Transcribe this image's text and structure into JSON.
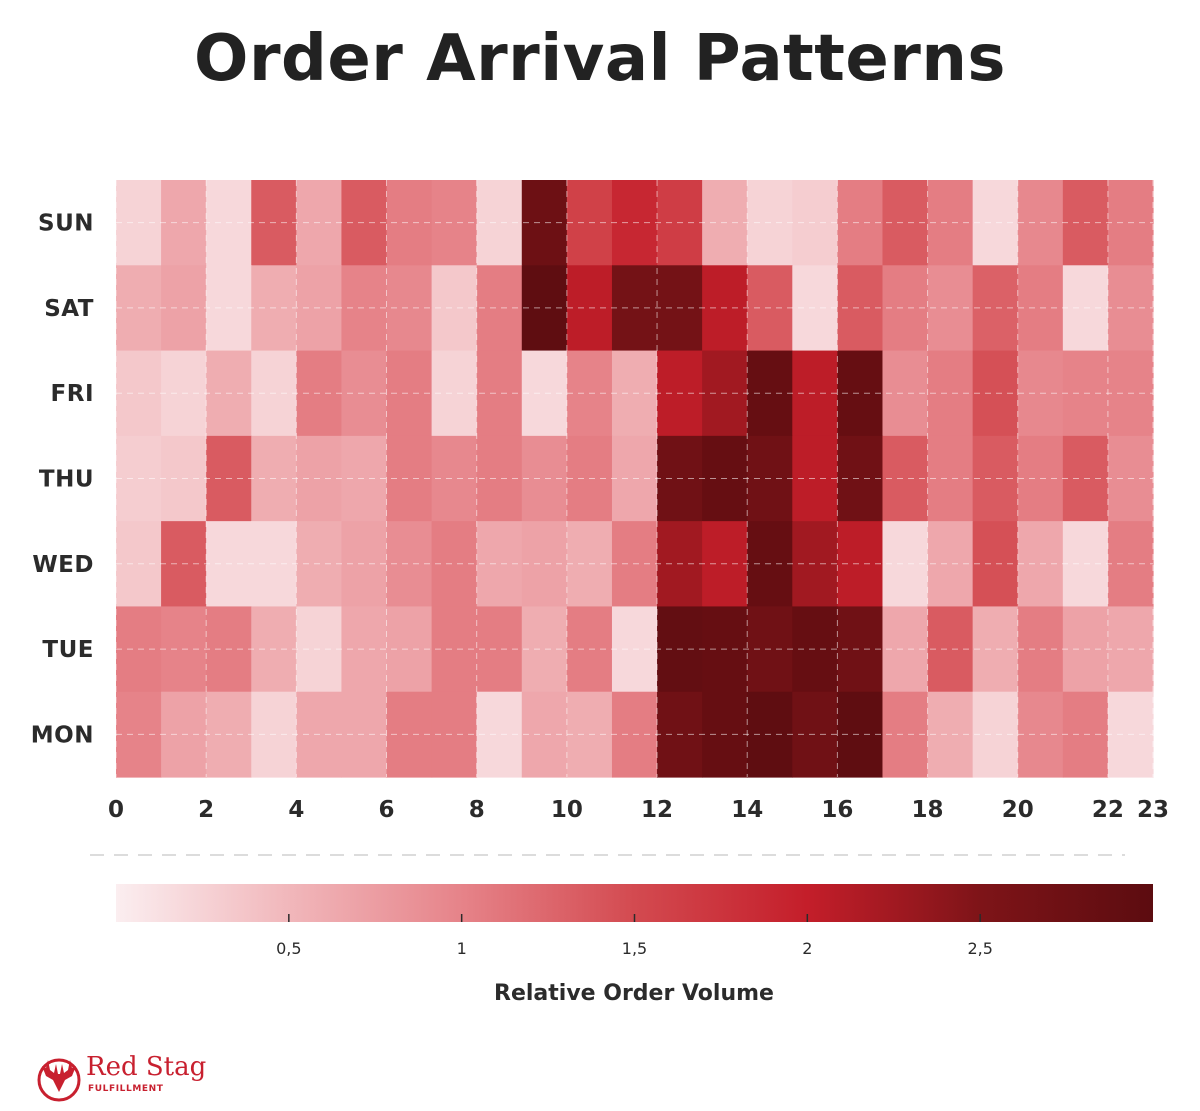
{
  "title": "Order Arrival Patterns",
  "chart_data": {
    "type": "heatmap",
    "title": "Order Arrival Patterns",
    "y_categories": [
      "SUN",
      "SAT",
      "FRI",
      "THU",
      "WED",
      "TUE",
      "MON"
    ],
    "x_tick_labels": [
      "0",
      "2",
      "4",
      "6",
      "8",
      "10",
      "12",
      "14",
      "16",
      "18",
      "20",
      "22",
      "23"
    ],
    "x_range": [
      0,
      23
    ],
    "values": [
      [
        0.25,
        0.65,
        0.2,
        1.35,
        0.65,
        1.35,
        1.05,
        1.0,
        0.25,
        2.75,
        1.6,
        1.9,
        1.65,
        0.6,
        0.25,
        0.3,
        1.05,
        1.35,
        1.05,
        0.2,
        0.95,
        1.35,
        1.05
      ],
      [
        0.6,
        0.7,
        0.2,
        0.6,
        0.7,
        1.0,
        0.95,
        0.35,
        1.05,
        2.95,
        2.05,
        2.65,
        2.65,
        2.05,
        1.35,
        0.2,
        1.35,
        1.05,
        0.9,
        1.3,
        1.05,
        0.2,
        0.9
      ],
      [
        0.35,
        0.25,
        0.6,
        0.25,
        1.05,
        0.9,
        1.05,
        0.25,
        1.05,
        0.2,
        1.0,
        0.6,
        2.05,
        2.25,
        2.85,
        2.05,
        2.85,
        0.9,
        1.05,
        1.45,
        0.95,
        1.0,
        1.0
      ],
      [
        0.3,
        0.35,
        1.35,
        0.6,
        0.7,
        0.65,
        1.05,
        0.95,
        1.05,
        0.9,
        1.05,
        0.65,
        2.7,
        2.85,
        2.7,
        2.05,
        2.7,
        1.35,
        1.05,
        1.35,
        1.05,
        1.35,
        0.9
      ],
      [
        0.35,
        1.35,
        0.2,
        0.2,
        0.6,
        0.7,
        0.9,
        1.05,
        0.65,
        0.7,
        0.6,
        1.05,
        2.25,
        2.05,
        2.85,
        2.25,
        2.05,
        0.2,
        0.65,
        1.45,
        0.65,
        0.2,
        1.05
      ],
      [
        1.05,
        1.0,
        1.05,
        0.6,
        0.25,
        0.65,
        0.7,
        1.05,
        1.05,
        0.6,
        1.05,
        0.2,
        2.9,
        2.85,
        2.7,
        2.85,
        2.7,
        0.65,
        1.35,
        0.6,
        1.05,
        0.7,
        0.65
      ],
      [
        1.0,
        0.7,
        0.6,
        0.25,
        0.65,
        0.65,
        1.05,
        1.05,
        0.2,
        0.65,
        0.6,
        1.05,
        2.7,
        2.85,
        2.95,
        2.7,
        2.95,
        1.05,
        0.6,
        0.25,
        0.95,
        1.05,
        0.2
      ]
    ],
    "colorbar": {
      "label": "Relative Order Volume",
      "range": [
        0,
        3
      ],
      "ticks": [
        "0,5",
        "1",
        "1,5",
        "2",
        "2,5"
      ],
      "tick_values": [
        0.5,
        1,
        1.5,
        2,
        2.5
      ],
      "colors": [
        "#fbeef0",
        "#f1b7bb",
        "#e68389",
        "#d34a50",
        "#c41e2a",
        "#7e1418",
        "#5c0c10"
      ]
    },
    "grid": true
  },
  "logo": {
    "name": "Red Stag",
    "sub": "FULFILLMENT"
  }
}
